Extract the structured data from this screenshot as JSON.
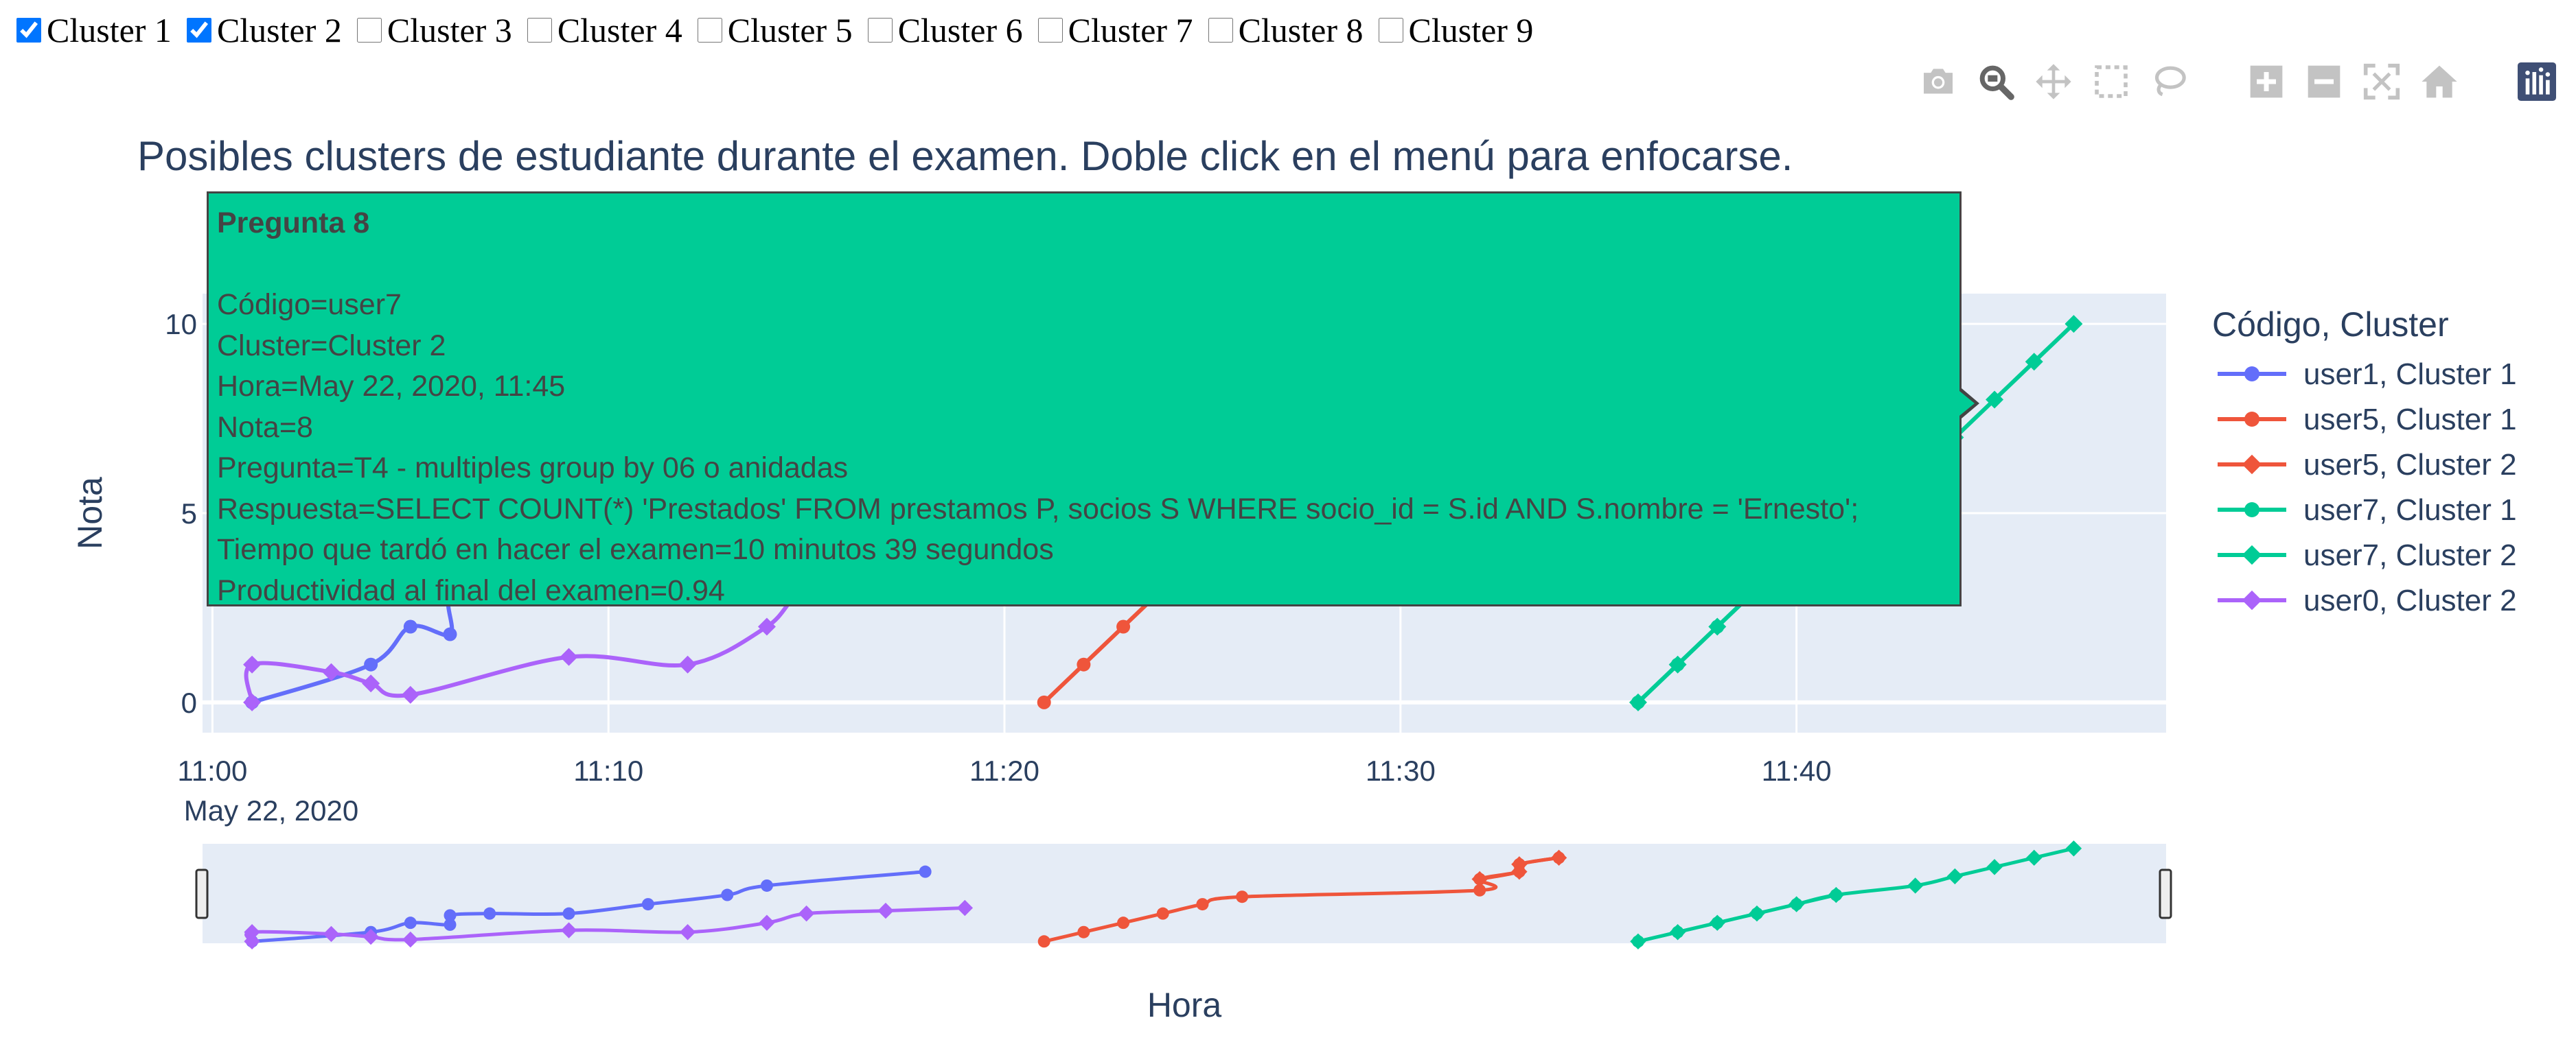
{
  "filter": {
    "clusters": [
      {
        "label": "Cluster 1",
        "checked": true
      },
      {
        "label": "Cluster 2",
        "checked": true
      },
      {
        "label": "Cluster 3",
        "checked": false
      },
      {
        "label": "Cluster 4",
        "checked": false
      },
      {
        "label": "Cluster 5",
        "checked": false
      },
      {
        "label": "Cluster 6",
        "checked": false
      },
      {
        "label": "Cluster 7",
        "checked": false
      },
      {
        "label": "Cluster 8",
        "checked": false
      },
      {
        "label": "Cluster 9",
        "checked": false
      }
    ]
  },
  "modebar": {
    "icons": [
      "camera-icon",
      "zoom-icon",
      "pan-icon",
      "box-select-icon",
      "lasso-select-icon",
      "zoom-in-icon",
      "zoom-out-icon",
      "autoscale-icon",
      "reset-axes-icon",
      "plotly-logo-icon"
    ],
    "active": "zoom-icon"
  },
  "hover": {
    "title": "Pregunta 8",
    "lines": [
      "Código=user7",
      "Cluster=Cluster 2",
      "Hora=May 22, 2020, 11:45",
      "Nota=8",
      "Pregunta=T4 - multiples group by 06 o anidadas",
      "Respuesta=SELECT COUNT(*) 'Prestados' FROM prestamos P, socios S WHERE socio_id = S.id AND S.nombre = 'Ernesto';",
      "Tiempo que tardó en hacer el examen=10 minutos 39 segundos",
      "Productividad al final del examen=0.94"
    ],
    "color": "#00cc96"
  },
  "chart_data": {
    "type": "line",
    "title": "Posibles clusters de estudiante durante el examen. Doble click en el menú para enfocarse.",
    "xlabel": "Hora",
    "ylabel": "Nota",
    "x_axis_type": "date",
    "x_ticks": [
      "11:00",
      "11:10",
      "11:20",
      "11:30",
      "11:40"
    ],
    "x_date_label": "May 22, 2020",
    "xlim": [
      "10:59:45",
      "11:49:20"
    ],
    "y_ticks": [
      0,
      5,
      10
    ],
    "ylim": [
      -0.8,
      10.8
    ],
    "range_slider_ylim": [
      -0.2,
      10.5
    ],
    "legend": {
      "title": "Código, Cluster",
      "placement": "right"
    },
    "grid": true,
    "series": [
      {
        "name": "user1, Cluster 1",
        "color": "#636efa",
        "marker": "circle",
        "x": [
          "11:01",
          "11:04",
          "11:05",
          "11:06",
          "11:06",
          "11:07",
          "11:09",
          "11:11",
          "11:13",
          "11:14",
          "11:18"
        ],
        "y": [
          0,
          1,
          2,
          1.8,
          2.8,
          3,
          3,
          4,
          5,
          6,
          7.5
        ]
      },
      {
        "name": "user5, Cluster 1",
        "color": "#ef553b",
        "marker": "circle",
        "x": [
          "11:21",
          "11:22",
          "11:23",
          "11:24",
          "11:25",
          "11:26",
          "11:32",
          "11:32",
          "11:33",
          "11:33",
          "11:34"
        ],
        "y": [
          0,
          1,
          2,
          3,
          4,
          4.8,
          5.5,
          6.7,
          7.5,
          8.3,
          9
        ]
      },
      {
        "name": "user5, Cluster 2",
        "color": "#ef553b",
        "marker": "diamond",
        "x": [
          "11:32",
          "11:33",
          "11:33",
          "11:34"
        ],
        "y": [
          6.7,
          7.5,
          8.3,
          9
        ]
      },
      {
        "name": "user7, Cluster 1",
        "color": "#00cc96",
        "marker": "circle",
        "x": [
          "11:36",
          "11:37",
          "11:38",
          "11:39",
          "11:40",
          "11:41"
        ],
        "y": [
          0,
          1,
          2,
          3,
          4,
          5
        ]
      },
      {
        "name": "user7, Cluster 2",
        "color": "#00cc96",
        "marker": "diamond",
        "x": [
          "11:36",
          "11:37",
          "11:38",
          "11:39",
          "11:40",
          "11:41",
          "11:43",
          "11:44",
          "11:45",
          "11:46",
          "11:47"
        ],
        "y": [
          0,
          1,
          2,
          3,
          4,
          5,
          6,
          7,
          8,
          9,
          10
        ]
      },
      {
        "name": "user0, Cluster 2",
        "color": "#ab63fa",
        "marker": "diamond",
        "x": [
          "11:01",
          "11:01",
          "11:03",
          "11:04",
          "11:05",
          "11:09",
          "11:12",
          "11:14",
          "11:15",
          "11:17",
          "11:19"
        ],
        "y": [
          0,
          1,
          0.8,
          0.5,
          0.2,
          1.2,
          1,
          2,
          3,
          3.3,
          3.6
        ]
      }
    ]
  }
}
